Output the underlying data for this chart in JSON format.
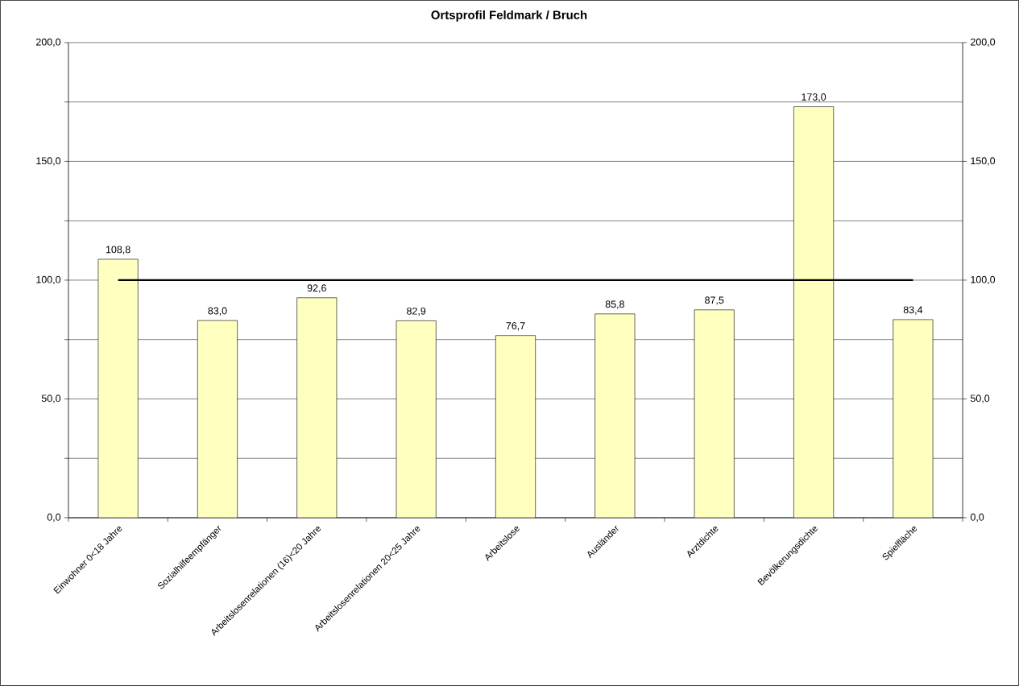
{
  "chart_data": {
    "type": "bar",
    "title": "Ortsprofil Feldmark / Bruch",
    "categories": [
      "Einwohner 0<18 Jahre",
      "Sozialhilfeempfänger",
      "Arbeitslosenrelationen (16)<20 Jahre",
      "Arbeitslosenrelationen 20<25 Jahre",
      "Arbeitslose",
      "Ausländer",
      "Arztdichte",
      "Bevölkerungsdichte",
      "Spielfläche"
    ],
    "values": [
      108.8,
      83.0,
      92.6,
      82.9,
      76.7,
      85.8,
      87.5,
      173.0,
      83.4
    ],
    "value_labels": [
      "108,8",
      "83,0",
      "92,6",
      "82,9",
      "76,7",
      "85,8",
      "87,5",
      "173,0",
      "83,4"
    ],
    "color": "#ffffc0",
    "ylim": [
      0,
      200
    ],
    "yticks": [
      {
        "value": 0,
        "label": "0,0"
      },
      {
        "value": 25,
        "label": null
      },
      {
        "value": 50,
        "label": "50,0"
      },
      {
        "value": 75,
        "label": null
      },
      {
        "value": 100,
        "label": "100,0"
      },
      {
        "value": 125,
        "label": null
      },
      {
        "value": 150,
        "label": "150,0"
      },
      {
        "value": 175,
        "label": null
      },
      {
        "value": 200,
        "label": "200,0"
      }
    ],
    "y2lim": [
      0,
      200
    ],
    "y2ticks": [
      {
        "value": 0,
        "label": "0,0"
      },
      {
        "value": 50,
        "label": "50,0"
      },
      {
        "value": 100,
        "label": "100,0"
      },
      {
        "value": 150,
        "label": "150,0"
      },
      {
        "value": 200,
        "label": "200,0"
      }
    ],
    "grid": "y",
    "ref_lines": [
      {
        "axis": "y",
        "value": 100,
        "color": "#000000"
      }
    ]
  }
}
